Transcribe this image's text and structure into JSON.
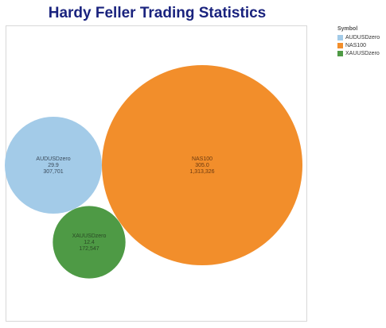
{
  "chart_data": {
    "type": "bubble",
    "title": "Hardy Feller Trading Statistics",
    "legend": {
      "title": "Symbol",
      "position": "top-right"
    },
    "grid": false,
    "series": [
      {
        "name": "AUDUSDzero",
        "value1": "29.9",
        "value2": "307,701",
        "size": 307701,
        "color": "#a3cbe8"
      },
      {
        "name": "NAS100",
        "value1": "305.0",
        "value2": "1,313,326",
        "size": 1313326,
        "color": "#f28e2b"
      },
      {
        "name": "XAUUSDzero",
        "value1": "12.4",
        "value2": "172,547",
        "size": 172547,
        "color": "#4e9a45"
      }
    ]
  }
}
